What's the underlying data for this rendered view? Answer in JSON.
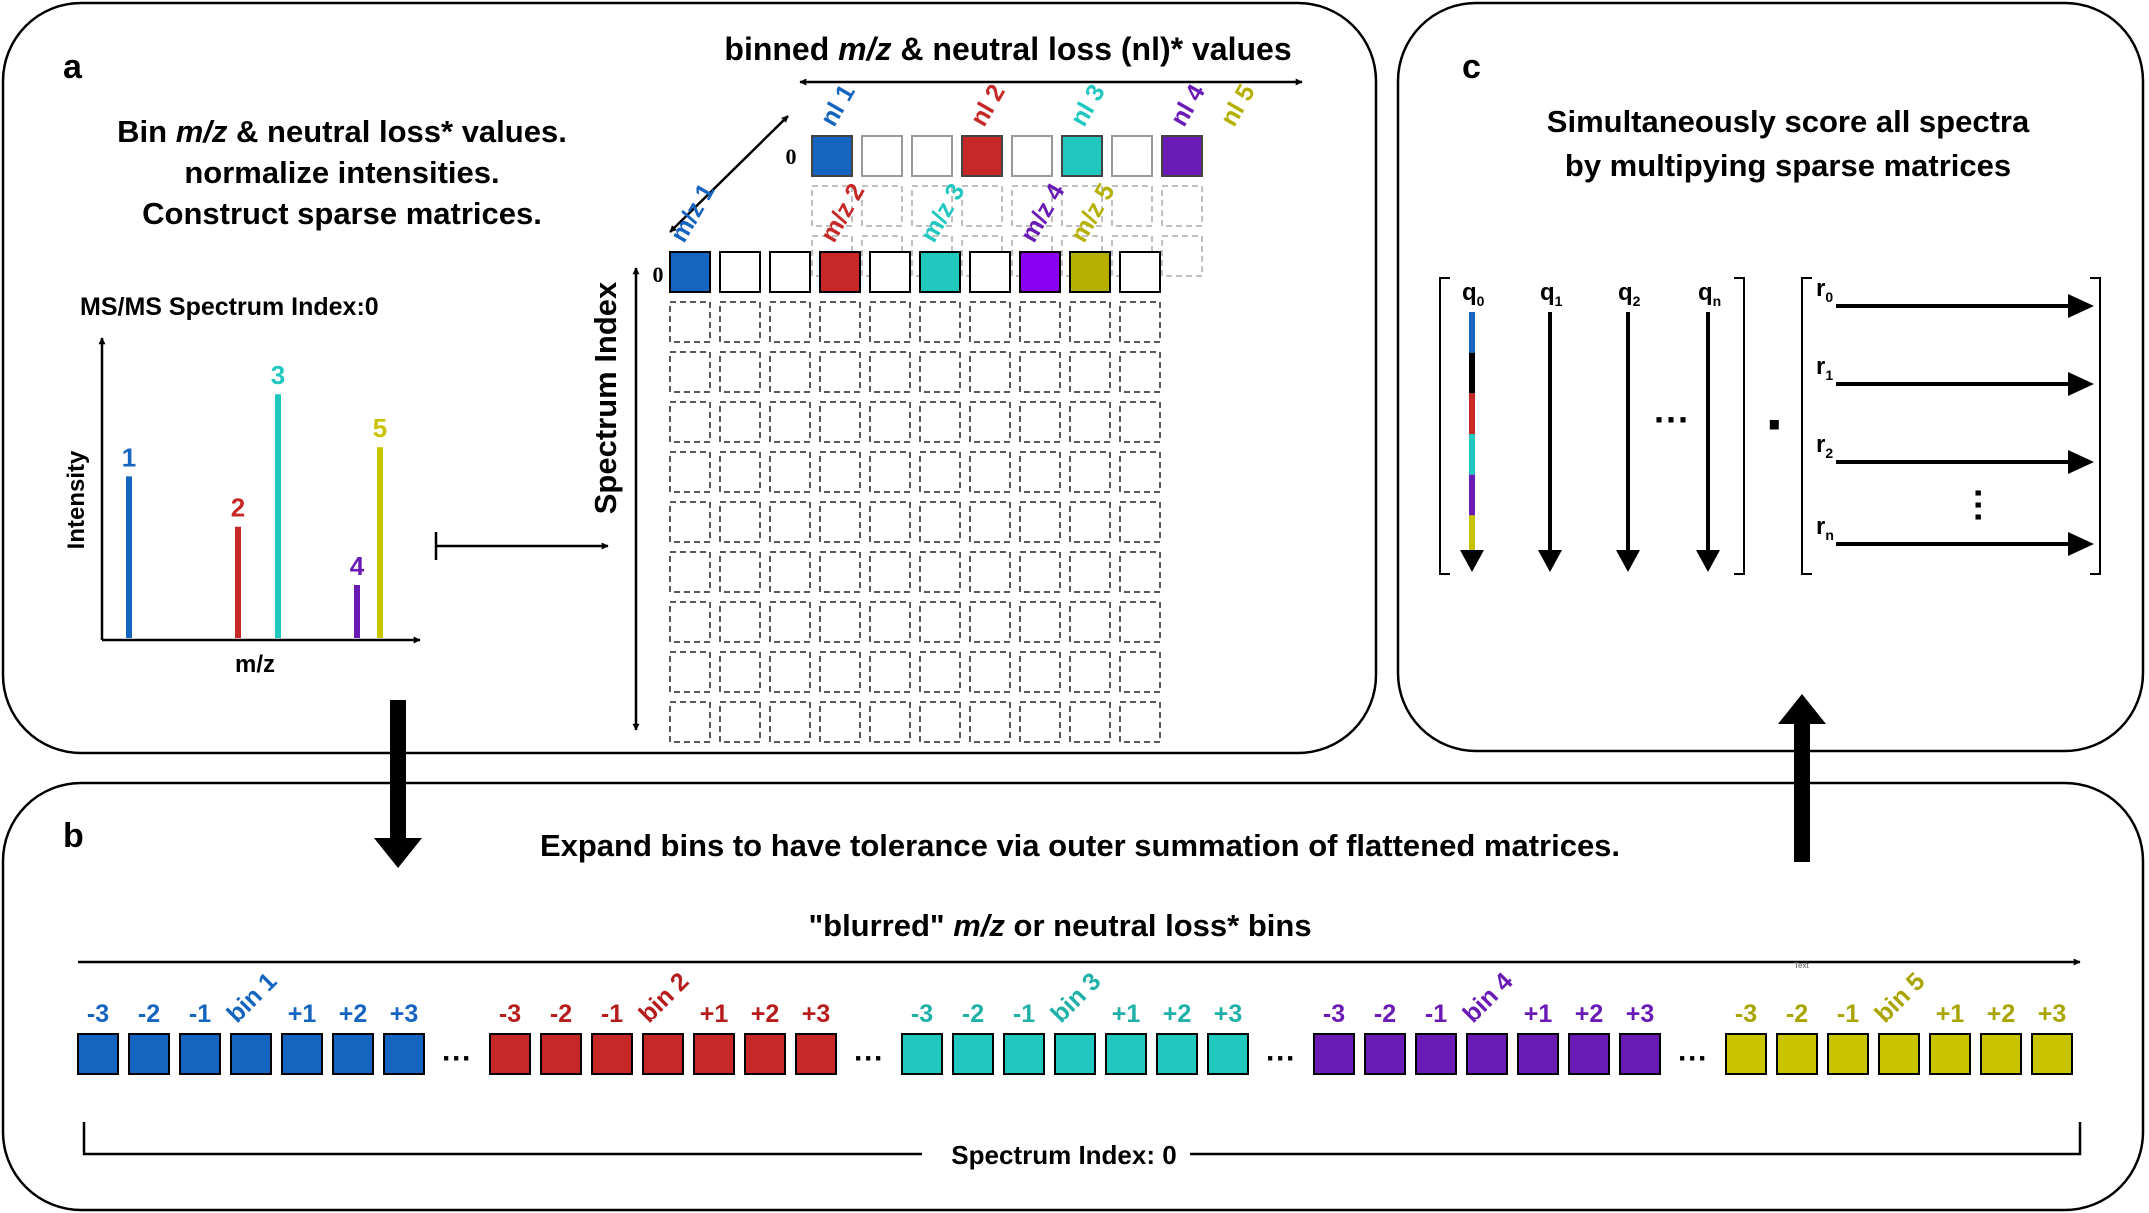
{
  "panel_a": {
    "label": "a",
    "instructions": [
      "Bin m/z & neutral loss* values.",
      "normalize intensities.",
      "Construct sparse matrices."
    ],
    "instr_line1": {
      "pre": "Bin ",
      "italic": "m/z",
      "post": " & neutral loss* values."
    },
    "spectrum_title": "MS/MS Spectrum Index:0",
    "x_axis_label": "m/z",
    "y_axis_label": "Intensity",
    "peaks": [
      {
        "label": "1",
        "color": "#1565c0",
        "intensity": 0.61
      },
      {
        "label": "2",
        "color": "#c62828",
        "intensity": 0.42
      },
      {
        "label": "3",
        "color": "#20c8c0",
        "intensity": 0.92
      },
      {
        "label": "4",
        "color": "#6a1bb5",
        "intensity": 0.2
      },
      {
        "label": "5",
        "color": "#c8c400",
        "intensity": 0.72
      }
    ],
    "matrix_header": {
      "pre": "binned ",
      "italic": "m/z",
      "post": " & neutral loss (nl)* values"
    },
    "spectrum_index_label": "Spectrum Index",
    "row_zero": "0",
    "nl_labels": [
      {
        "text": "nl 1",
        "color": "#1565c0"
      },
      {
        "text": "nl 2",
        "color": "#c62828"
      },
      {
        "text": "nl 3",
        "color": "#20c8c0"
      },
      {
        "text": "nl 4",
        "color": "#6a1bb5"
      },
      {
        "text": "nl 5",
        "color": "#b5b000"
      }
    ],
    "mz_labels": [
      {
        "text": "m/z 1",
        "color": "#1565c0"
      },
      {
        "text": "m/z 2",
        "color": "#c62828"
      },
      {
        "text": "m/z 3",
        "color": "#20c8c0"
      },
      {
        "text": "m/z 4",
        "color": "#6a1bb5"
      },
      {
        "text": "m/z 5",
        "color": "#b5b000"
      }
    ]
  },
  "panel_b": {
    "label": "b",
    "title": "Expand bins to have tolerance via outer summation of flattened matrices.",
    "axis_label": {
      "pre": "\"blurred\" ",
      "italic": "m/z",
      "post": " or neutral loss* bins"
    },
    "tiny_text": "Text",
    "offsets": [
      "-3",
      "-2",
      "-1",
      "+1",
      "+2",
      "+3"
    ],
    "ellipsis": "···",
    "groups": [
      {
        "bin": "bin 1",
        "color": "#1565c0",
        "text_color": "#1565c0"
      },
      {
        "bin": "bin 2",
        "color": "#c62828",
        "text_color": "#b71c1c"
      },
      {
        "bin": "bin 3",
        "color": "#20c8c0",
        "text_color": "#1fb0a8"
      },
      {
        "bin": "bin 4",
        "color": "#6a1bb5",
        "text_color": "#6a1bb5"
      },
      {
        "bin": "bin 5",
        "color": "#c8c400",
        "text_color": "#a8a400"
      }
    ],
    "bracket_label": "Spectrum Index: 0"
  },
  "panel_c": {
    "label": "c",
    "title": [
      "Simultaneously score all spectra",
      "by multipying sparse matrices"
    ],
    "q_columns": [
      {
        "base": "q",
        "sub": "0"
      },
      {
        "base": "q",
        "sub": "1"
      },
      {
        "base": "q",
        "sub": "2"
      },
      {
        "base": "q",
        "sub": "n"
      }
    ],
    "r_rows": [
      {
        "base": "r",
        "sub": "0"
      },
      {
        "base": "r",
        "sub": "1"
      },
      {
        "base": "r",
        "sub": "2"
      },
      {
        "base": "r",
        "sub": "n"
      }
    ],
    "q0_colors": [
      "#1565c0",
      "#000000",
      "#c62828",
      "#20c8c0",
      "#6a1bb5",
      "#c8c400"
    ],
    "h_ellipsis": "···",
    "dot": "·"
  }
}
